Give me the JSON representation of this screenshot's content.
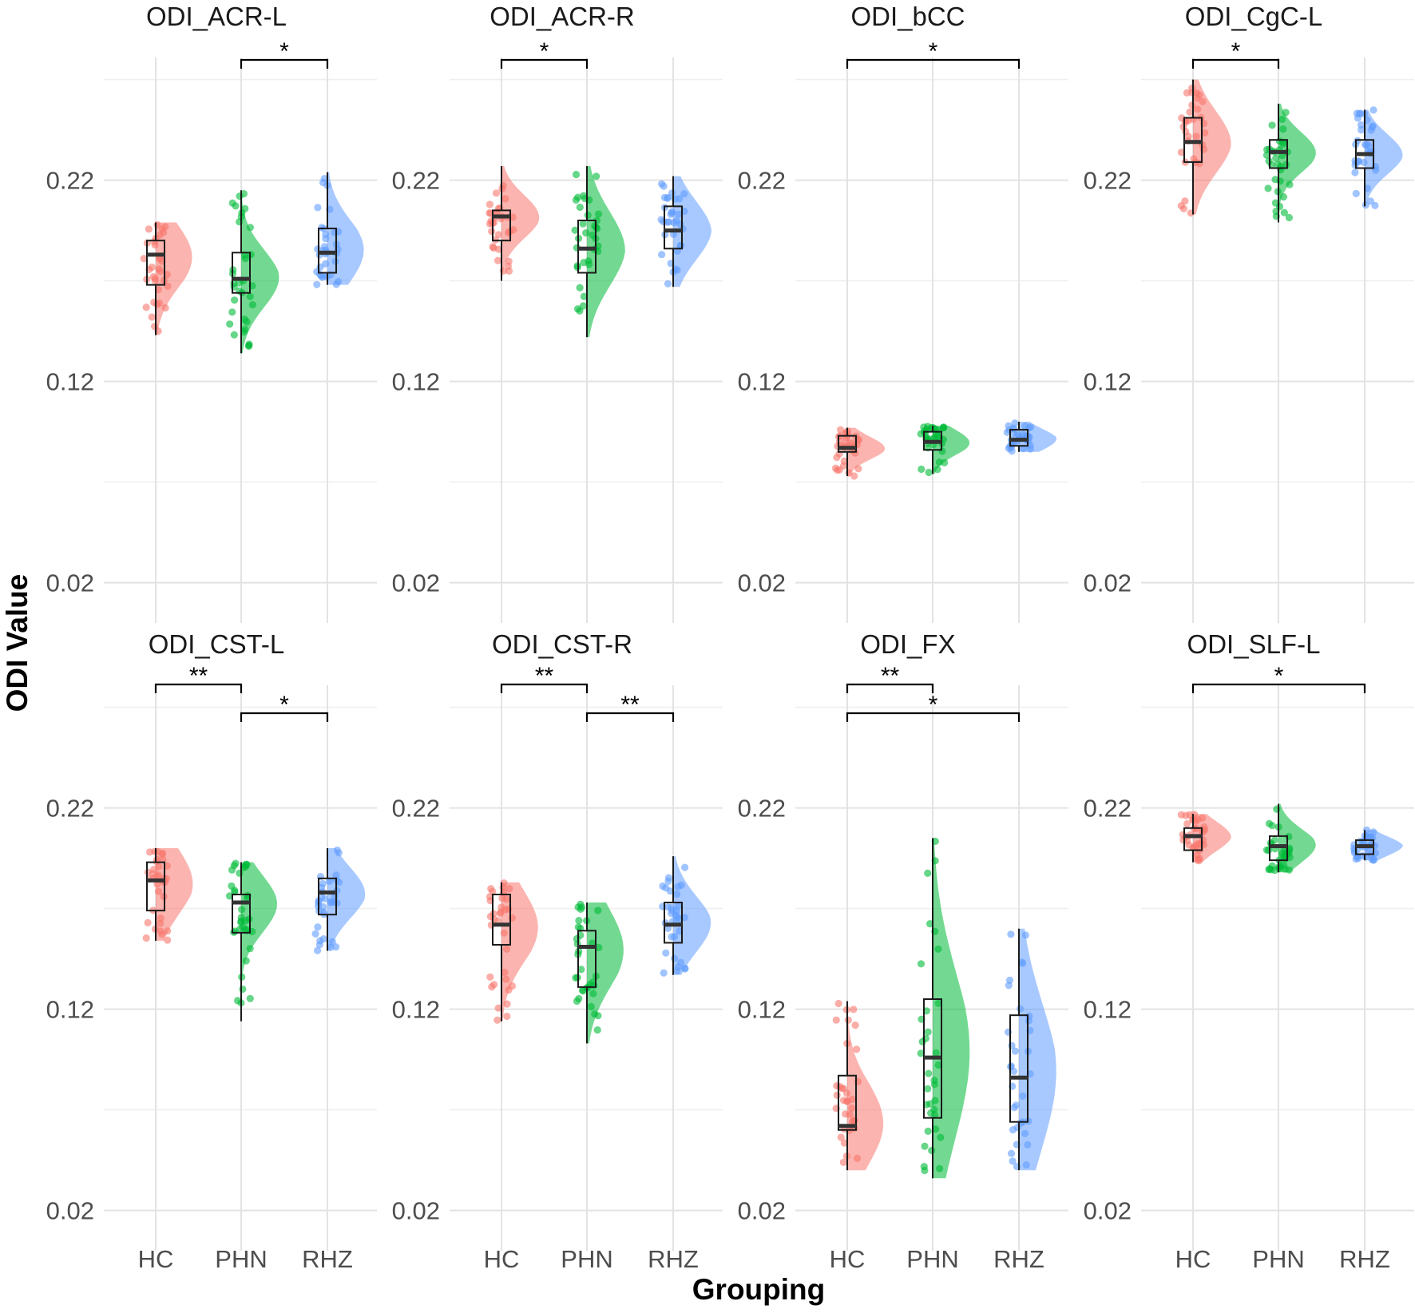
{
  "chart_data": {
    "type": "box-violin-jitter",
    "xlabel": "Grouping",
    "ylabel": "ODI Value",
    "ylim": [
      0.0,
      0.3
    ],
    "yticks": [
      0.02,
      0.12,
      0.22
    ],
    "categories": [
      "HC",
      "PHN",
      "RHZ"
    ],
    "group_colors": {
      "HC": "#F8766D",
      "PHN": "#00BA38",
      "RHZ": "#619CFF"
    },
    "panels": [
      {
        "title": "ODI_ACR-L",
        "groups": [
          {
            "name": "HC",
            "min": 0.143,
            "q1": 0.168,
            "median": 0.183,
            "q3": 0.19,
            "max": 0.199
          },
          {
            "name": "PHN",
            "min": 0.134,
            "q1": 0.164,
            "median": 0.171,
            "q3": 0.184,
            "max": 0.215
          },
          {
            "name": "RHZ",
            "min": 0.168,
            "q1": 0.174,
            "median": 0.184,
            "q3": 0.196,
            "max": 0.224
          }
        ],
        "significance": [
          {
            "from": "PHN",
            "to": "RHZ",
            "label": "*",
            "level": 1
          }
        ]
      },
      {
        "title": "ODI_ACR-R",
        "groups": [
          {
            "name": "HC",
            "min": 0.17,
            "q1": 0.19,
            "median": 0.202,
            "q3": 0.205,
            "max": 0.227
          },
          {
            "name": "PHN",
            "min": 0.142,
            "q1": 0.174,
            "median": 0.186,
            "q3": 0.2,
            "max": 0.227
          },
          {
            "name": "RHZ",
            "min": 0.167,
            "q1": 0.186,
            "median": 0.195,
            "q3": 0.207,
            "max": 0.222
          }
        ],
        "significance": [
          {
            "from": "HC",
            "to": "PHN",
            "label": "*",
            "level": 1
          }
        ]
      },
      {
        "title": "ODI_bCC",
        "groups": [
          {
            "name": "HC",
            "min": 0.073,
            "q1": 0.085,
            "median": 0.087,
            "q3": 0.093,
            "max": 0.097
          },
          {
            "name": "PHN",
            "min": 0.074,
            "q1": 0.086,
            "median": 0.09,
            "q3": 0.095,
            "max": 0.098
          },
          {
            "name": "RHZ",
            "min": 0.085,
            "q1": 0.088,
            "median": 0.091,
            "q3": 0.096,
            "max": 0.1
          }
        ],
        "significance": [
          {
            "from": "HC",
            "to": "RHZ",
            "label": "*",
            "level": 1
          }
        ]
      },
      {
        "title": "ODI_CgC-L",
        "groups": [
          {
            "name": "HC",
            "min": 0.203,
            "q1": 0.229,
            "median": 0.239,
            "q3": 0.251,
            "max": 0.27
          },
          {
            "name": "PHN",
            "min": 0.199,
            "q1": 0.226,
            "median": 0.234,
            "q3": 0.24,
            "max": 0.258
          },
          {
            "name": "RHZ",
            "min": 0.207,
            "q1": 0.226,
            "median": 0.233,
            "q3": 0.24,
            "max": 0.255
          }
        ],
        "significance": [
          {
            "from": "HC",
            "to": "PHN",
            "label": "*",
            "level": 1
          }
        ]
      },
      {
        "title": "ODI_CST-L",
        "groups": [
          {
            "name": "HC",
            "min": 0.154,
            "q1": 0.169,
            "median": 0.184,
            "q3": 0.193,
            "max": 0.2
          },
          {
            "name": "PHN",
            "min": 0.114,
            "q1": 0.158,
            "median": 0.173,
            "q3": 0.177,
            "max": 0.193
          },
          {
            "name": "RHZ",
            "min": 0.149,
            "q1": 0.167,
            "median": 0.178,
            "q3": 0.185,
            "max": 0.2
          }
        ],
        "significance": [
          {
            "from": "HC",
            "to": "PHN",
            "label": "**",
            "level": 2
          },
          {
            "from": "PHN",
            "to": "RHZ",
            "label": "*",
            "level": 1
          }
        ]
      },
      {
        "title": "ODI_CST-R",
        "groups": [
          {
            "name": "HC",
            "min": 0.114,
            "q1": 0.152,
            "median": 0.162,
            "q3": 0.177,
            "max": 0.183
          },
          {
            "name": "PHN",
            "min": 0.103,
            "q1": 0.131,
            "median": 0.151,
            "q3": 0.159,
            "max": 0.173
          },
          {
            "name": "RHZ",
            "min": 0.137,
            "q1": 0.153,
            "median": 0.162,
            "q3": 0.173,
            "max": 0.196
          }
        ],
        "significance": [
          {
            "from": "HC",
            "to": "PHN",
            "label": "**",
            "level": 2
          },
          {
            "from": "PHN",
            "to": "RHZ",
            "label": "**",
            "level": 1
          }
        ]
      },
      {
        "title": "ODI_FX",
        "groups": [
          {
            "name": "HC",
            "min": 0.04,
            "q1": 0.06,
            "median": 0.062,
            "q3": 0.087,
            "max": 0.124
          },
          {
            "name": "PHN",
            "min": 0.036,
            "q1": 0.066,
            "median": 0.096,
            "q3": 0.125,
            "max": 0.205
          },
          {
            "name": "RHZ",
            "min": 0.04,
            "q1": 0.064,
            "median": 0.086,
            "q3": 0.117,
            "max": 0.16
          }
        ],
        "significance": [
          {
            "from": "HC",
            "to": "PHN",
            "label": "**",
            "level": 2
          },
          {
            "from": "HC",
            "to": "RHZ",
            "label": "*",
            "level": 1
          }
        ]
      },
      {
        "title": "ODI_SLF-L",
        "groups": [
          {
            "name": "HC",
            "min": 0.193,
            "q1": 0.199,
            "median": 0.206,
            "q3": 0.21,
            "max": 0.217
          },
          {
            "name": "PHN",
            "min": 0.188,
            "q1": 0.194,
            "median": 0.201,
            "q3": 0.206,
            "max": 0.222
          },
          {
            "name": "RHZ",
            "min": 0.194,
            "q1": 0.197,
            "median": 0.201,
            "q3": 0.204,
            "max": 0.209
          }
        ],
        "significance": [
          {
            "from": "HC",
            "to": "RHZ",
            "label": "*",
            "level": 2
          }
        ]
      }
    ]
  }
}
